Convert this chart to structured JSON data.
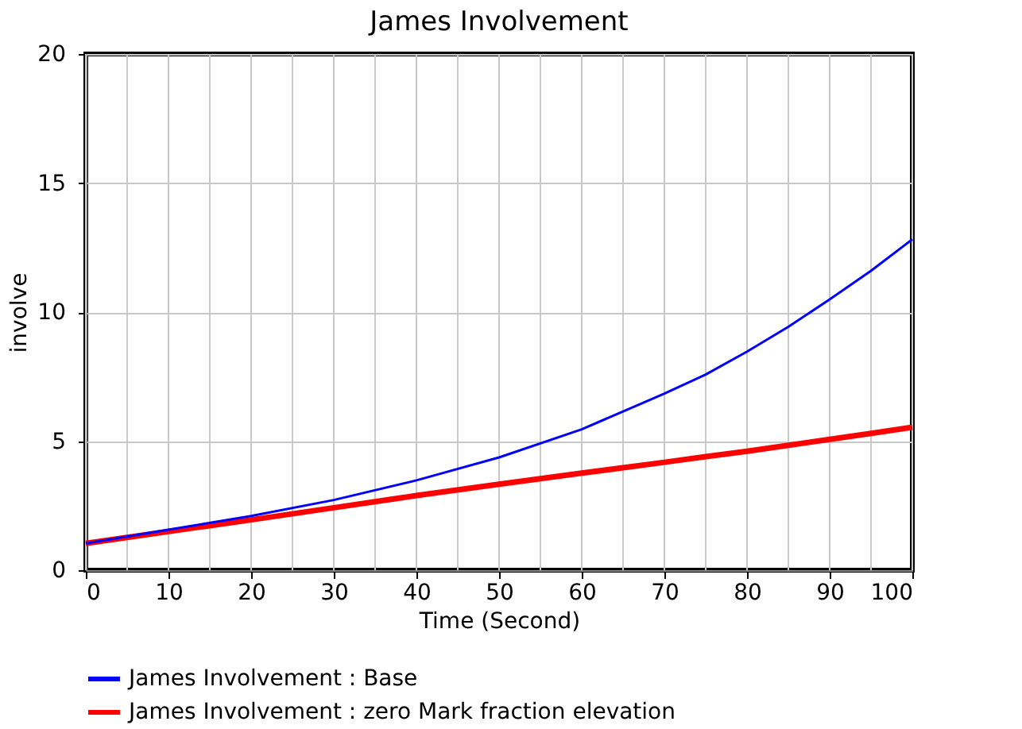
{
  "chart_data": {
    "type": "line",
    "title": "James Involvement",
    "xlabel": "Time (Second)",
    "ylabel": "involve",
    "x": [
      0,
      10,
      20,
      30,
      40,
      50,
      60,
      70,
      75,
      80,
      85,
      90,
      95,
      100
    ],
    "series": [
      {
        "name": "James Involvement : Base",
        "color": "#0000ff",
        "values": [
          1.04,
          1.57,
          2.1,
          2.72,
          3.48,
          4.37,
          5.46,
          6.84,
          7.58,
          8.47,
          9.43,
          10.49,
          11.6,
          12.82
        ]
      },
      {
        "name": "James Involvement : zero Mark fraction elevation",
        "color": "#ff0000",
        "values": [
          1.04,
          1.5,
          1.95,
          2.42,
          2.89,
          3.33,
          3.76,
          4.18,
          4.4,
          4.61,
          4.84,
          5.07,
          5.3,
          5.54
        ]
      }
    ],
    "xlim": [
      0,
      100
    ],
    "ylim": [
      0,
      20
    ],
    "xticks": [
      0,
      {
        "value": 5,
        "label": null
      },
      10,
      {
        "value": 15,
        "label": null
      },
      20,
      {
        "value": 25,
        "label": null
      },
      30,
      {
        "value": 35,
        "label": null
      },
      40,
      {
        "value": 45,
        "label": null
      },
      50,
      {
        "value": 55,
        "label": null
      },
      60,
      {
        "value": 65,
        "label": null
      },
      70,
      {
        "value": 75,
        "label": null
      },
      80,
      {
        "value": 85,
        "label": null
      },
      90,
      {
        "value": 95,
        "label": null
      },
      100
    ],
    "yticks": [
      0,
      5,
      10,
      15,
      20
    ],
    "grid": true,
    "legend": "bottom",
    "marker": "none",
    "line_style": "solid"
  }
}
